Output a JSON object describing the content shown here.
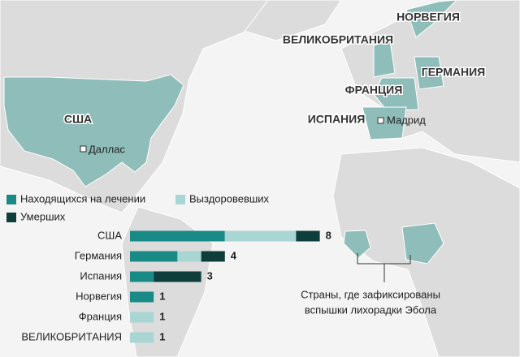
{
  "map": {
    "countries": [
      "НОРВЕГИЯ",
      "ВЕЛИКОБРИТАНИЯ",
      "ГЕРМАНИЯ",
      "ФРАНЦИЯ",
      "ИСПАНИЯ",
      "США"
    ],
    "cities": [
      "Даллас",
      "Мадрид"
    ],
    "annotation_lines": [
      "Страны, где зафиксированы",
      "вспышки лихорадки Эбола"
    ]
  },
  "chart_data": {
    "type": "bar",
    "orientation": "horizontal",
    "stacked": true,
    "categories": [
      "США",
      "Германия",
      "Испания",
      "Норвегия",
      "Франция",
      "ВЕЛИКОБРИТАНИЯ"
    ],
    "series": [
      {
        "name": "Находящихся на лечении",
        "color": "#1a8a86",
        "values": [
          4,
          2,
          1,
          1,
          0,
          0
        ]
      },
      {
        "name": "Выздоровевших",
        "color": "#a9d6d3",
        "values": [
          3,
          1,
          0,
          0,
          1,
          1
        ]
      },
      {
        "name": "Умерших",
        "color": "#0e3e3b",
        "values": [
          1,
          1,
          2,
          0,
          0,
          0
        ]
      }
    ],
    "totals": [
      8,
      4,
      3,
      1,
      1,
      1
    ]
  }
}
